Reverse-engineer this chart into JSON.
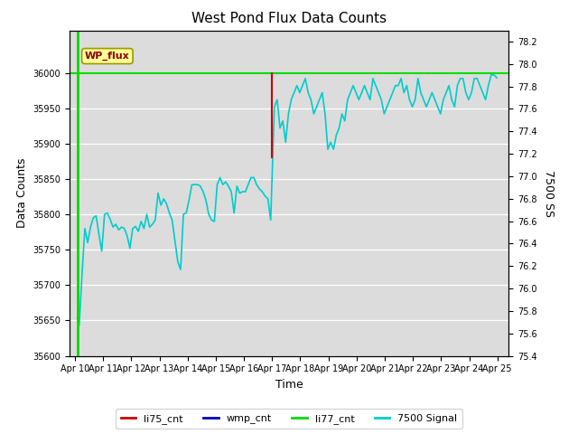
{
  "title": "West Pond Flux Data Counts",
  "ylabel_left": "Data Counts",
  "ylabel_right": "7500 SS",
  "xlabel": "Time",
  "ylim_left": [
    35600,
    36060
  ],
  "ylim_right": [
    75.4,
    78.3
  ],
  "bg_color": "#dcdcdc",
  "fig_color": "#ffffff",
  "annotation_text": "WP_flux",
  "annotation_bg": "#ffff99",
  "annotation_border": "#999900",
  "x_tick_labels": [
    "Apr 10",
    "Apr 11",
    "Apr 12",
    "Apr 13",
    "Apr 14",
    "Apr 15",
    "Apr 16",
    "Apr 17",
    "Apr 18",
    "Apr 19",
    "Apr 20",
    "Apr 21",
    "Apr 22",
    "Apr 23",
    "Apr 24",
    "Apr 25"
  ],
  "x_tick_positions": [
    0,
    1,
    2,
    3,
    4,
    5,
    6,
    7,
    8,
    9,
    10,
    11,
    12,
    13,
    14,
    15
  ],
  "li77_color": "#00dd00",
  "li75_color": "#cc0000",
  "wmp_cnt_color": "#0000bb",
  "signal_color": "#00cccc",
  "signal_7500_x": [
    0.08,
    0.15,
    0.25,
    0.35,
    0.45,
    0.55,
    0.65,
    0.75,
    0.85,
    0.95,
    1.05,
    1.15,
    1.25,
    1.35,
    1.45,
    1.55,
    1.65,
    1.75,
    1.85,
    1.95,
    2.05,
    2.15,
    2.25,
    2.35,
    2.45,
    2.55,
    2.65,
    2.75,
    2.85,
    2.95,
    3.05,
    3.15,
    3.25,
    3.35,
    3.45,
    3.55,
    3.65,
    3.75,
    3.85,
    3.95,
    4.05,
    4.15,
    4.25,
    4.35,
    4.45,
    4.55,
    4.65,
    4.75,
    4.85,
    4.95,
    5.05,
    5.15,
    5.25,
    5.35,
    5.45,
    5.55,
    5.65,
    5.75,
    5.85,
    5.95,
    6.05,
    6.15,
    6.25,
    6.35,
    6.45,
    6.55,
    6.65,
    6.75,
    6.85,
    6.95,
    7.08,
    7.18,
    7.28,
    7.38,
    7.48,
    7.58,
    7.68,
    7.78,
    7.88,
    7.98,
    8.08,
    8.18,
    8.28,
    8.38,
    8.48,
    8.58,
    8.68,
    8.78,
    8.88,
    8.98,
    9.08,
    9.18,
    9.28,
    9.38,
    9.48,
    9.58,
    9.68,
    9.78,
    9.88,
    9.98,
    10.08,
    10.18,
    10.28,
    10.38,
    10.48,
    10.58,
    10.68,
    10.78,
    10.88,
    10.98,
    11.08,
    11.18,
    11.28,
    11.38,
    11.48,
    11.58,
    11.68,
    11.78,
    11.88,
    11.98,
    12.08,
    12.18,
    12.28,
    12.38,
    12.48,
    12.58,
    12.68,
    12.78,
    12.88,
    12.98,
    13.08,
    13.18,
    13.28,
    13.38,
    13.48,
    13.58,
    13.68,
    13.78,
    13.88,
    13.98,
    14.08,
    14.18,
    14.28,
    14.38,
    14.48,
    14.58,
    14.68,
    14.78,
    14.88,
    14.98
  ],
  "signal_7500_y": [
    35653,
    35643,
    35715,
    35780,
    35760,
    35782,
    35795,
    35798,
    35772,
    35748,
    35800,
    35802,
    35793,
    35782,
    35786,
    35778,
    35782,
    35780,
    35770,
    35752,
    35780,
    35783,
    35776,
    35790,
    35780,
    35800,
    35782,
    35786,
    35792,
    35830,
    35813,
    35822,
    35815,
    35802,
    35792,
    35762,
    35733,
    35722,
    35800,
    35802,
    35820,
    35842,
    35842,
    35842,
    35840,
    35832,
    35820,
    35800,
    35792,
    35790,
    35842,
    35852,
    35842,
    35846,
    35840,
    35832,
    35802,
    35840,
    35830,
    35832,
    35832,
    35842,
    35852,
    35852,
    35842,
    35836,
    35832,
    35826,
    35822,
    35792,
    35952,
    35962,
    35922,
    35932,
    35902,
    35942,
    35962,
    35972,
    35982,
    35972,
    35982,
    35992,
    35972,
    35962,
    35942,
    35952,
    35962,
    35972,
    35942,
    35892,
    35902,
    35892,
    35912,
    35922,
    35942,
    35932,
    35962,
    35972,
    35982,
    35972,
    35962,
    35972,
    35982,
    35972,
    35962,
    35992,
    35982,
    35972,
    35962,
    35942,
    35952,
    35962,
    35972,
    35982,
    35982,
    35992,
    35972,
    35982,
    35962,
    35952,
    35962,
    35992,
    35972,
    35962,
    35952,
    35962,
    35972,
    35962,
    35952,
    35942,
    35962,
    35972,
    35982,
    35962,
    35952,
    35982,
    35992,
    35992,
    35972,
    35962,
    35972,
    35992,
    35992,
    35982,
    35972,
    35962,
    35982,
    35997,
    35997,
    35993
  ]
}
